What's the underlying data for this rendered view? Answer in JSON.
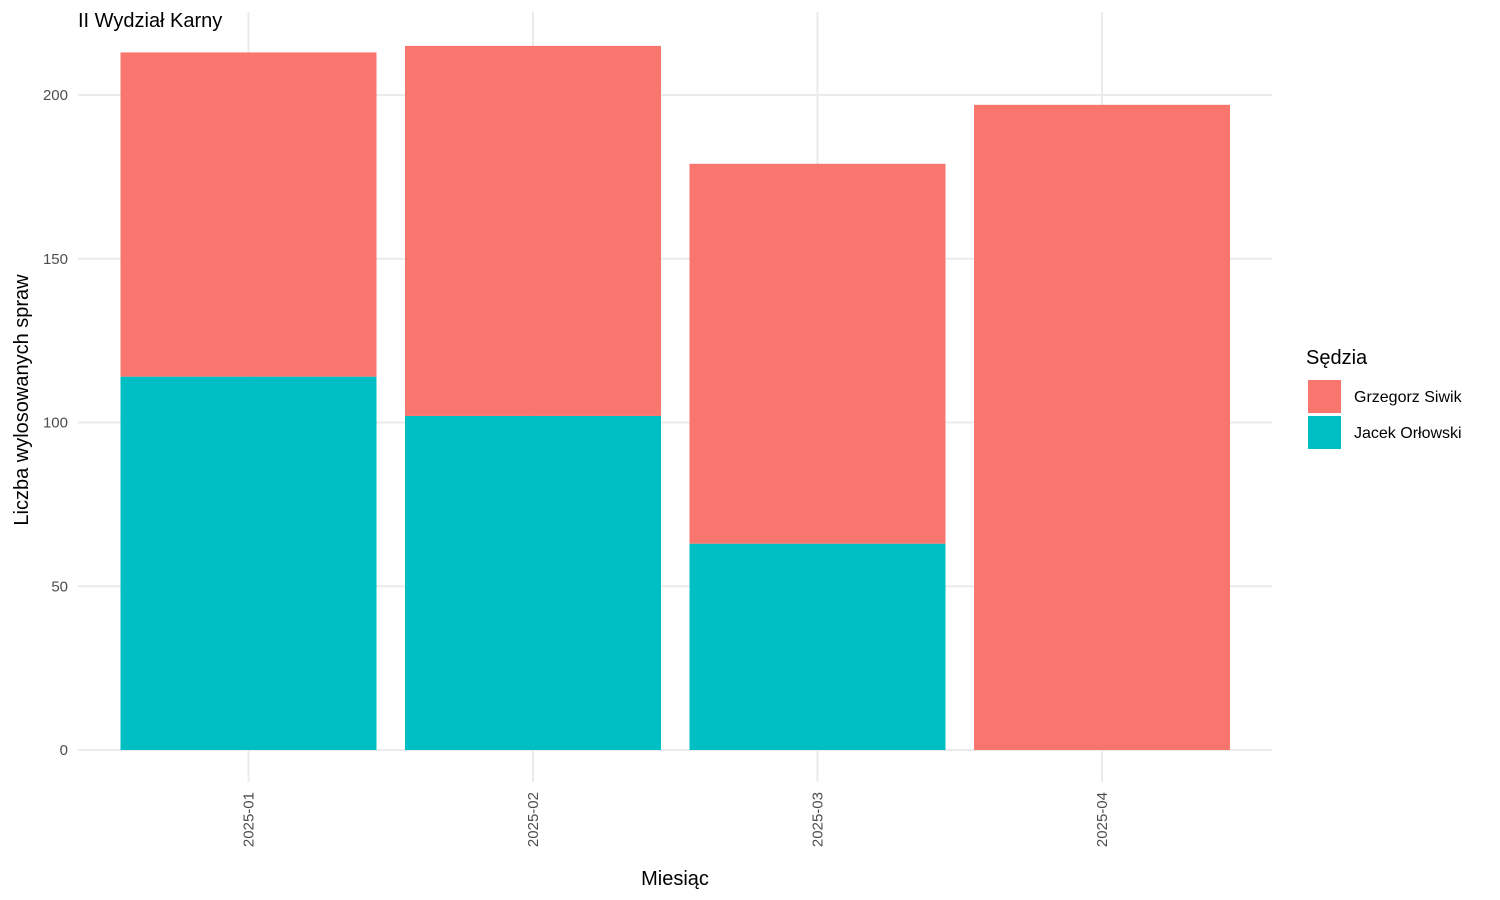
{
  "chart_data": {
    "type": "bar",
    "stacked": true,
    "title": "II Wydział Karny",
    "xlabel": "Miesiąc",
    "ylabel": "Liczba wylosowanych spraw",
    "categories": [
      "2025-01",
      "2025-02",
      "2025-03",
      "2025-04"
    ],
    "series": [
      {
        "name": "Jacek Orłowski",
        "color": "#00BFC4",
        "values": [
          114,
          102,
          63,
          0
        ]
      },
      {
        "name": "Grzegorz Siwik",
        "color": "#F8766D",
        "values": [
          99,
          113,
          116,
          197
        ]
      }
    ],
    "ylim": [
      0,
      225
    ],
    "yticks": [
      0,
      50,
      100,
      150,
      200
    ],
    "grid": true,
    "legend": {
      "title": "Sędzia",
      "position": "right",
      "entries": [
        {
          "label": "Grzegorz Siwik",
          "color": "#F8766D"
        },
        {
          "label": "Jacek Orłowski",
          "color": "#00BFC4"
        }
      ]
    }
  }
}
